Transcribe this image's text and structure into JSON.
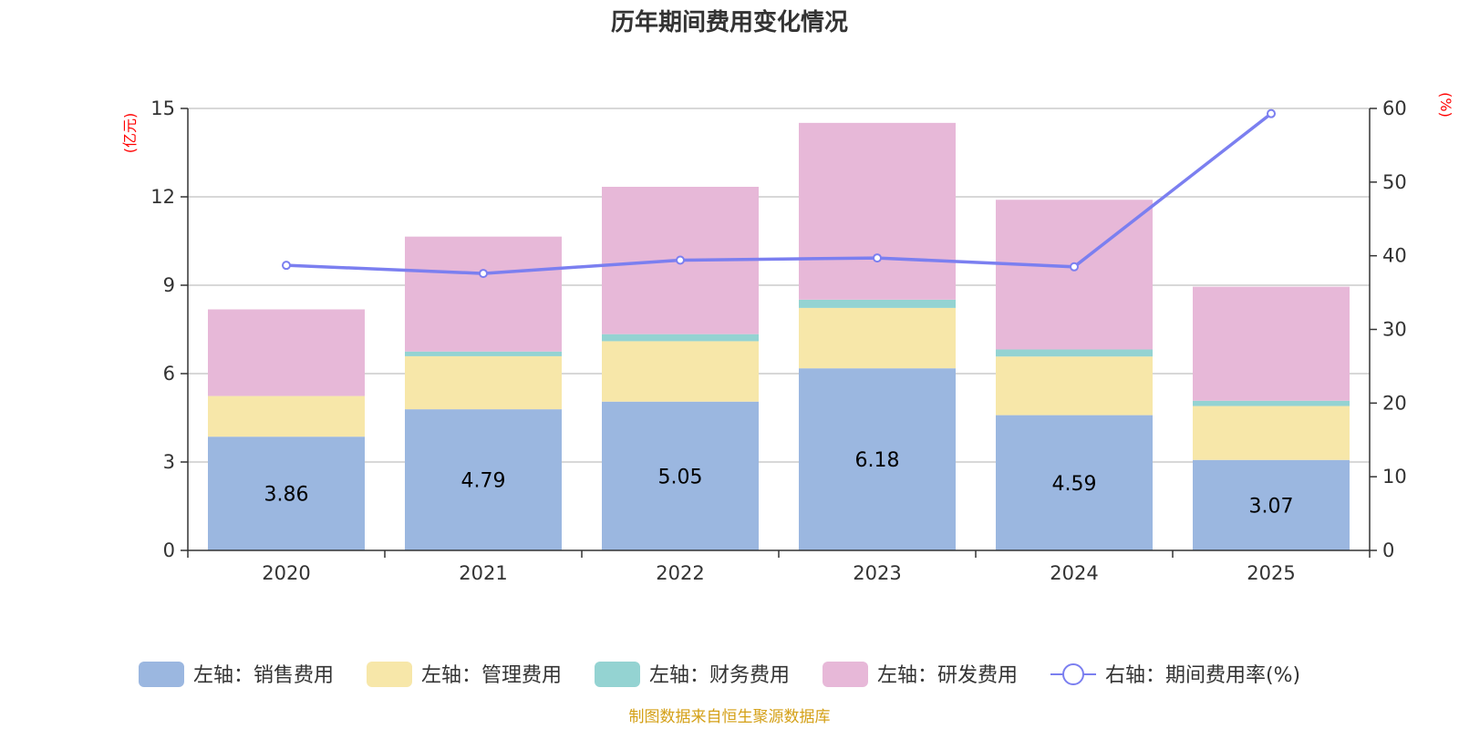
{
  "chart_data": {
    "type": "bar",
    "stacked": true,
    "title": "历年期间费用变化情况",
    "categories": [
      "2020",
      "2021",
      "2022",
      "2023",
      "2024",
      "2025"
    ],
    "left_axis": {
      "unit_label": "(亿元)",
      "ylim": [
        0,
        15
      ],
      "ticks": [
        "0",
        "3",
        "6",
        "9",
        "12",
        "15"
      ]
    },
    "right_axis": {
      "unit_label": "(%)",
      "ylim": [
        0,
        60
      ],
      "ticks": [
        "0",
        "10",
        "20",
        "30",
        "40",
        "50",
        "60"
      ]
    },
    "series": [
      {
        "name": "左轴：销售费用",
        "type": "bar",
        "axis": "left",
        "color": "#9bb7e0",
        "values": [
          3.86,
          4.79,
          5.05,
          6.18,
          4.59,
          3.07
        ],
        "data_labels": [
          "3.86",
          "4.79",
          "5.05",
          "6.18",
          "4.59",
          "3.07"
        ]
      },
      {
        "name": "左轴：管理费用",
        "type": "bar",
        "axis": "left",
        "color": "#f7e7a9",
        "values": [
          1.38,
          1.8,
          2.05,
          2.05,
          1.99,
          1.83
        ]
      },
      {
        "name": "左轴：财务费用",
        "type": "bar",
        "axis": "left",
        "color": "#94d3d2",
        "values": [
          0.0,
          0.16,
          0.24,
          0.28,
          0.24,
          0.18
        ]
      },
      {
        "name": "左轴：研发费用",
        "type": "bar",
        "axis": "left",
        "color": "#e7b8d8",
        "values": [
          2.94,
          3.9,
          5.0,
          6.0,
          5.08,
          3.87
        ]
      },
      {
        "name": "右轴：期间费用率(%)",
        "type": "line",
        "axis": "right",
        "color": "#7b7ff0",
        "values": [
          38.7,
          37.6,
          39.4,
          39.7,
          38.5,
          59.3
        ]
      }
    ],
    "legend_position": "bottom",
    "grid": true
  },
  "source": "制图数据来自恒生聚源数据库"
}
